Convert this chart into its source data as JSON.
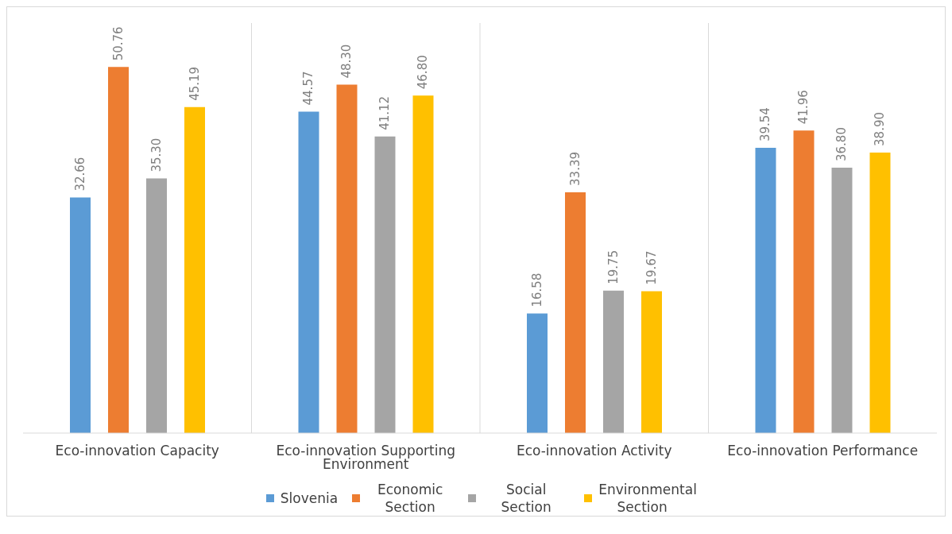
{
  "chart_data": {
    "type": "bar",
    "categories": [
      "Eco-innovation Capacity",
      "Eco-innovation Supporting Environment",
      "Eco-innovation Activity",
      "Eco-innovation Performance"
    ],
    "series": [
      {
        "name": "Slovenia",
        "color": "#5b9bd5",
        "values": [
          32.66,
          44.57,
          16.58,
          39.54
        ],
        "value_labels": [
          "32.66",
          "44.57",
          "16.58",
          "39.54"
        ]
      },
      {
        "name": "Economic Section",
        "color": "#ed7d31",
        "values": [
          50.76,
          48.3,
          33.39,
          41.96
        ],
        "value_labels": [
          "50.76",
          "48.30",
          "33.39",
          "41.96"
        ]
      },
      {
        "name": "Social Section",
        "color": "#a5a5a5",
        "values": [
          35.3,
          41.12,
          19.75,
          36.8
        ],
        "value_labels": [
          "35.30",
          "41.12",
          "19.75",
          "36.80"
        ]
      },
      {
        "name": "Environmental Section",
        "color": "#ffc000",
        "values": [
          45.19,
          46.8,
          19.67,
          38.9
        ],
        "value_labels": [
          "45.19",
          "46.80",
          "19.67",
          "38.90"
        ]
      }
    ],
    "grid": "x",
    "legend": "bottom"
  }
}
